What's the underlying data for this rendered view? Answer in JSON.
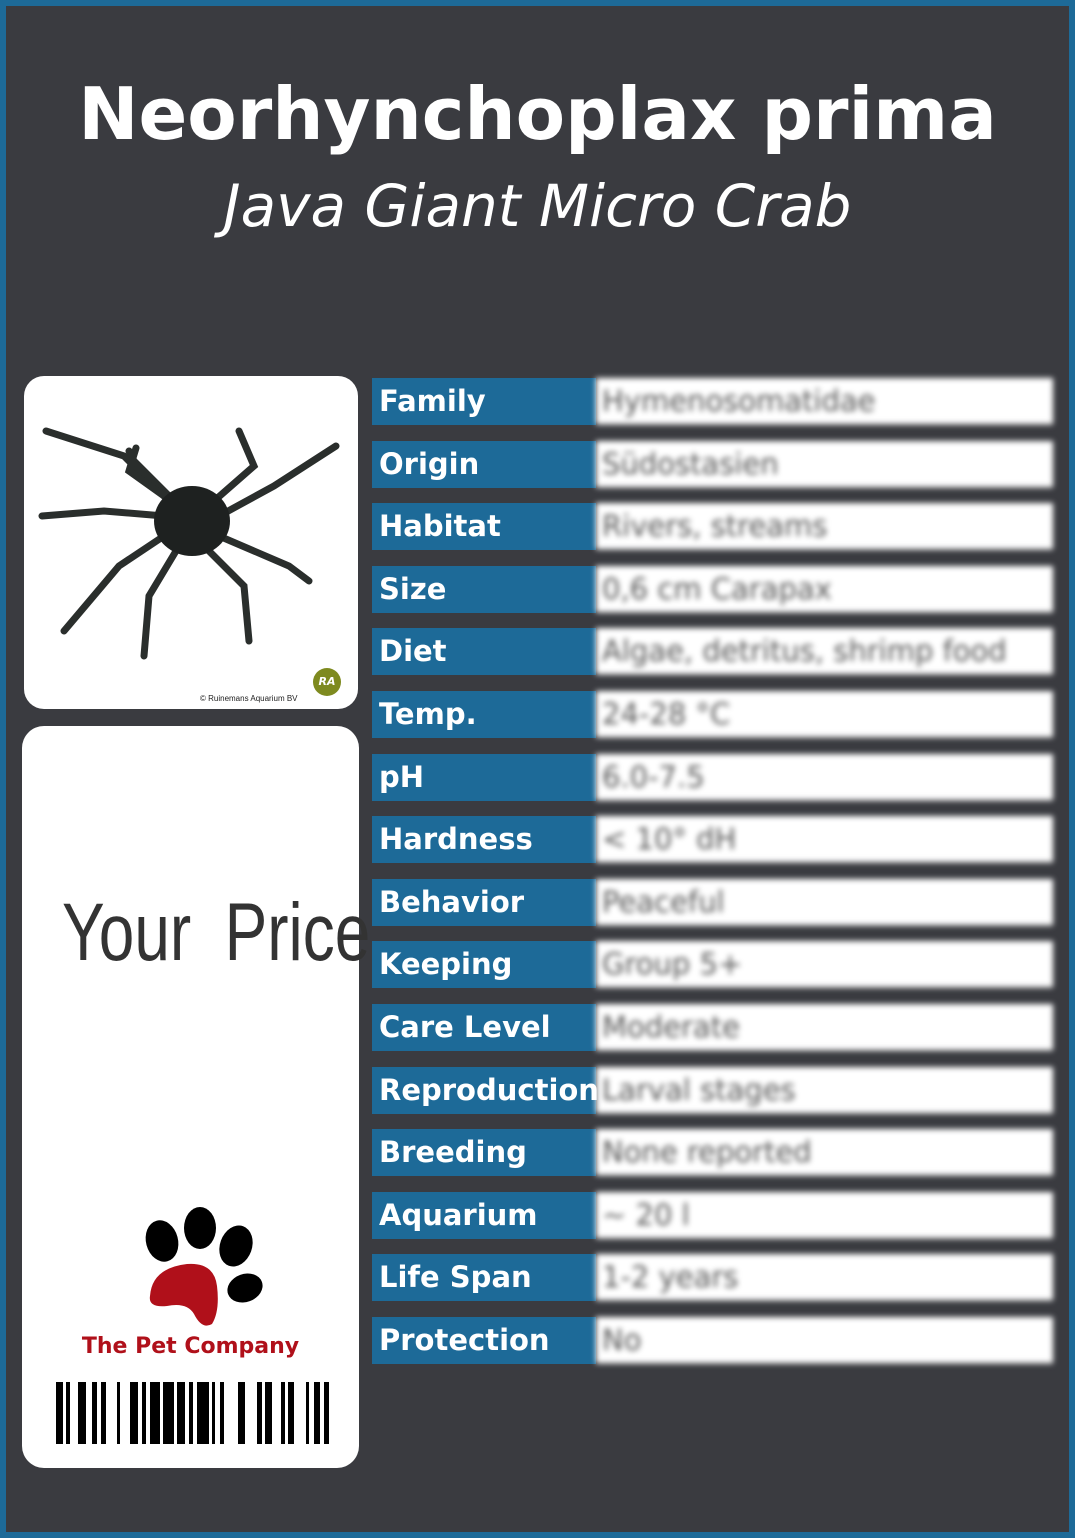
{
  "header": {
    "scientific_name": "Neorhynchoplax prima",
    "common_name": "Java Giant Micro Crab"
  },
  "photo": {
    "copyright": "© Ruinemans Aquarium BV",
    "logo_text": "RA",
    "logo_color": "#7e8a1f"
  },
  "price_card": {
    "price_label": "Your Price",
    "company_name": "The Pet Company",
    "brand_color": "#b0101a"
  },
  "colors": {
    "label_bg": "#1d6a98",
    "background": "#3a3b40"
  },
  "facts": [
    {
      "label": "Family",
      "value": "Hymenosomatidae"
    },
    {
      "label": "Origin",
      "value": "Südostasien"
    },
    {
      "label": "Habitat",
      "value": "Rivers, streams"
    },
    {
      "label": "Size",
      "value": "0,6 cm Carapax"
    },
    {
      "label": "Diet",
      "value": "Algae, detritus, shrimp food"
    },
    {
      "label": "Temp.",
      "value": "24-28 °C"
    },
    {
      "label": "pH",
      "value": "6.0-7.5"
    },
    {
      "label": "Hardness",
      "value": "< 10° dH"
    },
    {
      "label": "Behavior",
      "value": "Peaceful"
    },
    {
      "label": "Keeping",
      "value": "Group 5+"
    },
    {
      "label": "Care Level",
      "value": "Moderate"
    },
    {
      "label": "Reproduction",
      "value": "Larval stages"
    },
    {
      "label": "Breeding",
      "value": "None reported"
    },
    {
      "label": "Aquarium",
      "value": "~ 20 l"
    },
    {
      "label": "Life Span",
      "value": "1-2 years"
    },
    {
      "label": "Protection",
      "value": "No"
    }
  ]
}
